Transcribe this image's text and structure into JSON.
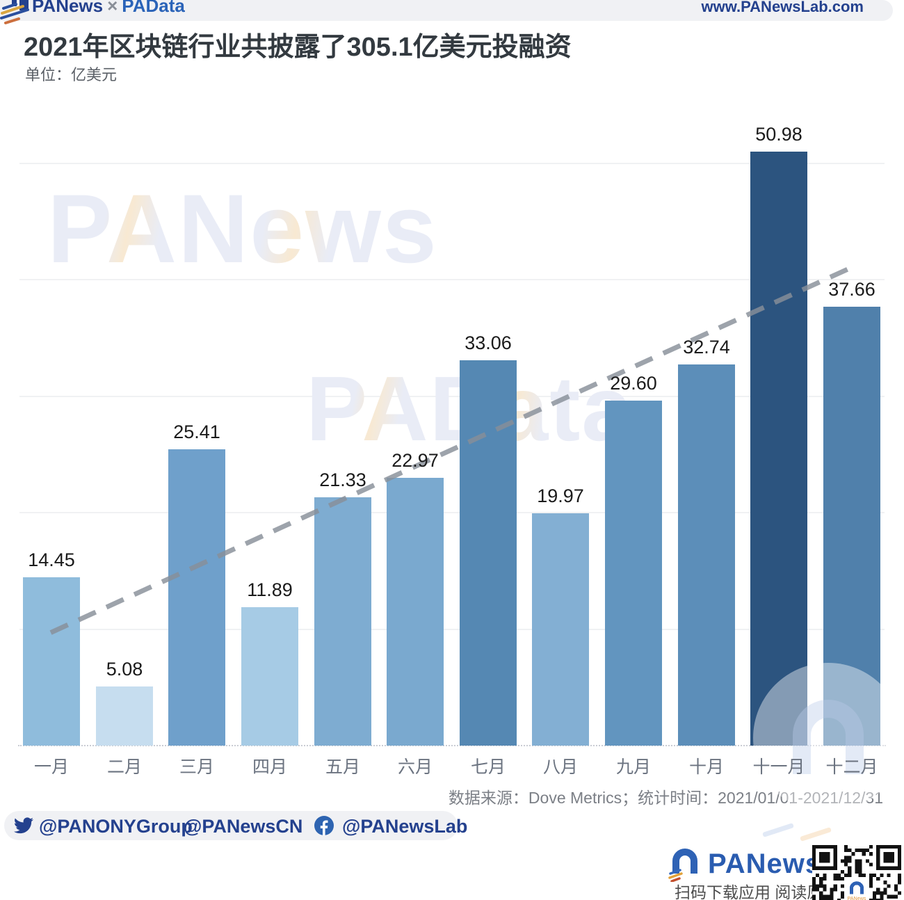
{
  "header": {
    "brand": {
      "panews": "PANews",
      "separator": "×",
      "padata": "PAData"
    },
    "website": "www.PANewsLab.com"
  },
  "title": "2021年区块链行业共披露了305.1亿美元投融资",
  "unit_label": "单位：亿美元",
  "chart_data": {
    "type": "bar",
    "title": "2021年区块链行业共披露了305.1亿美元投融资",
    "unit": "亿美元",
    "categories": [
      "一月",
      "二月",
      "三月",
      "四月",
      "五月",
      "六月",
      "七月",
      "八月",
      "九月",
      "十月",
      "十一月",
      "十二月"
    ],
    "values": [
      14.45,
      5.08,
      25.41,
      11.89,
      21.33,
      22.97,
      33.06,
      19.97,
      29.6,
      32.74,
      50.98,
      37.66
    ],
    "value_labels": [
      "14.45",
      "5.08",
      "25.41",
      "11.89",
      "21.33",
      "22.97",
      "33.06",
      "19.97",
      "29.60",
      "32.74",
      "50.98",
      "37.66"
    ],
    "bar_colors": [
      "#8FBCDC",
      "#C6DDEF",
      "#6FA0CB",
      "#A6CBE5",
      "#7EACD1",
      "#7AA9CF",
      "#5588B3",
      "#83AFD3",
      "#6295BF",
      "#5C8EB9",
      "#2C547F",
      "#5080AB"
    ],
    "ylim": [
      0,
      55
    ],
    "gridline_values": [
      10,
      20,
      30,
      40,
      50
    ],
    "grid": true,
    "legend": "none",
    "trend_line": {
      "style": "dashed",
      "start_value": 9.7,
      "end_value": 41.0
    }
  },
  "watermarks": {
    "top": "PANews",
    "middle": "PAData"
  },
  "footer": {
    "source_line": "数据来源：Dove Metrics；统计时间：2021/01/01-2021/12/31",
    "social": {
      "twitter_handle_1": "@PANONYGroup",
      "twitter_handle_2": "@PANewsCN",
      "facebook_handle": "@PANewsLab"
    },
    "brand": {
      "name": "PANews",
      "caption": "扫码下载应用 阅读原文"
    }
  },
  "colors": {
    "brand_navy": "#24418e",
    "brand_blue": "#2a5cb0",
    "accent_orange": "#e0973c",
    "trend_gray": "#878f99",
    "bar_darkest": "#2C547F"
  }
}
